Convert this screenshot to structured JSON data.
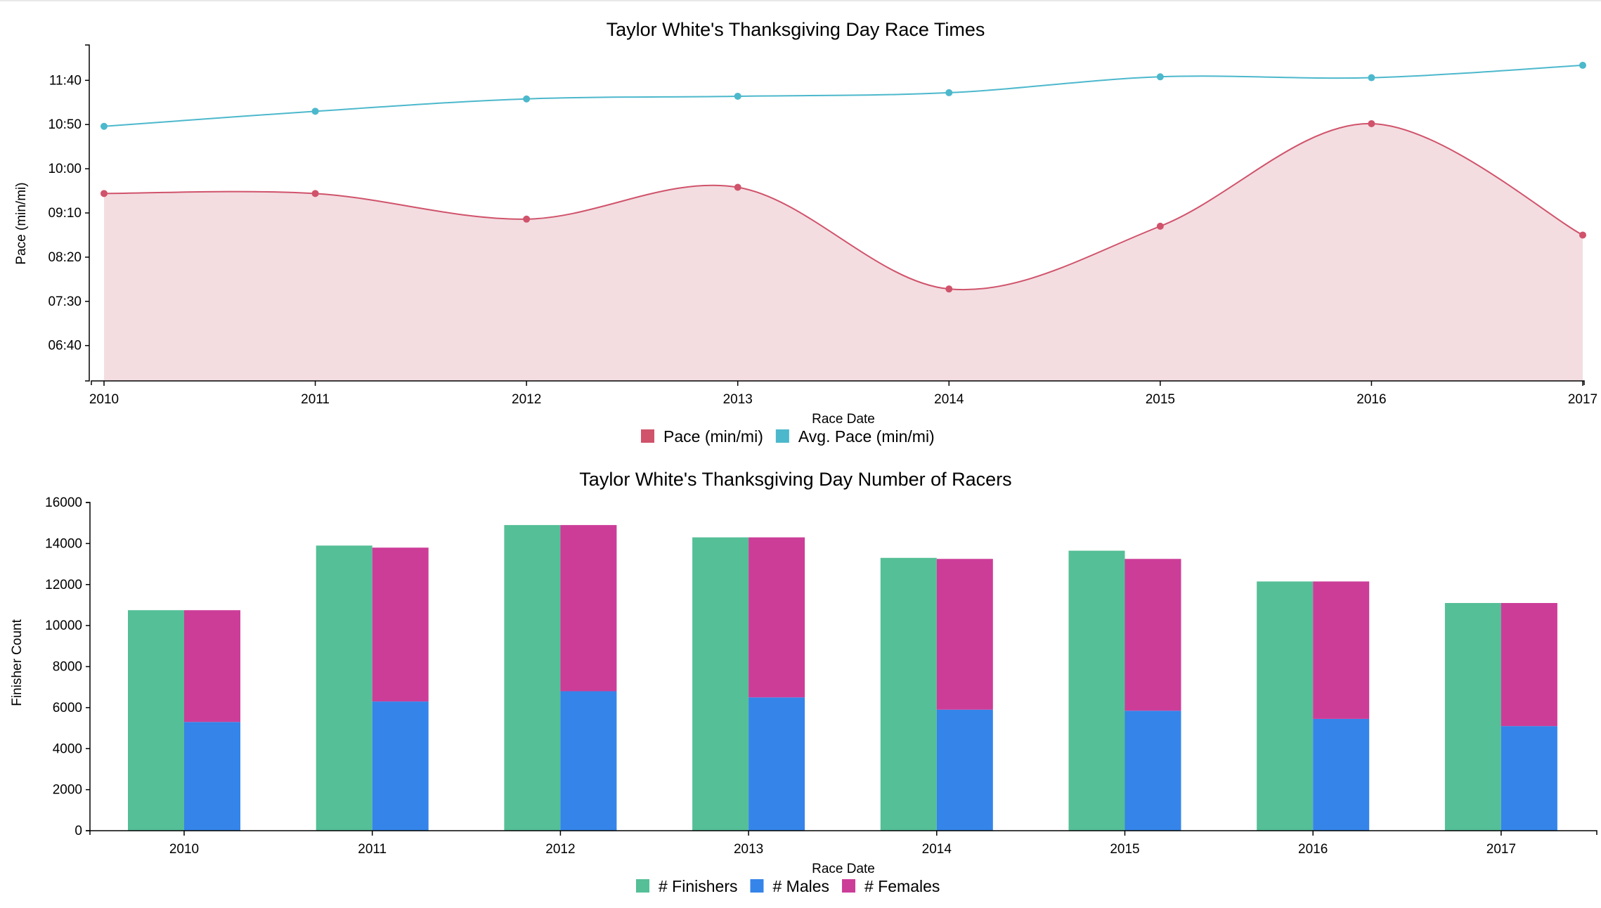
{
  "chart_data": [
    {
      "type": "area",
      "title": "Taylor White's Thanksgiving Day Race Times",
      "xlabel": "Race Date",
      "ylabel": "Pace (min/mi)",
      "y_unit": "minutes per mile",
      "y_ticks": [
        "06:40",
        "07:30",
        "08:20",
        "09:10",
        "10:00",
        "10:50",
        "11:40"
      ],
      "ylim_display": [
        "06:00",
        "12:20"
      ],
      "x": [
        "2010",
        "2011",
        "2012",
        "2013",
        "2014",
        "2015",
        "2016",
        "2017"
      ],
      "series": [
        {
          "name": "Pace (min/mi)",
          "color": "#d0536b",
          "fill": "#f3dde1",
          "style": "area",
          "values": [
            "09:32",
            "09:32",
            "09:03",
            "09:39",
            "07:44",
            "08:55",
            "10:51",
            "08:45"
          ]
        },
        {
          "name": "Avg. Pace (min/mi)",
          "color": "#4cb8cc",
          "style": "line",
          "values": [
            "10:48",
            "11:05",
            "11:19",
            "11:22",
            "11:26",
            "11:44",
            "11:43",
            "11:57"
          ]
        }
      ],
      "legend_position": "bottom"
    },
    {
      "type": "bar",
      "title": "Taylor White's Thanksgiving Day Number of Racers",
      "xlabel": "Race Date",
      "ylabel": "Finisher Count",
      "ylim": [
        0,
        16000
      ],
      "y_ticks": [
        "0",
        "2000",
        "4000",
        "6000",
        "8000",
        "10000",
        "12000",
        "14000",
        "16000"
      ],
      "categories": [
        "2010",
        "2011",
        "2012",
        "2013",
        "2014",
        "2015",
        "2016",
        "2017"
      ],
      "series": [
        {
          "name": "# Finishers",
          "color": "#55bf97",
          "stack": "a",
          "values": [
            10750,
            13900,
            14900,
            14300,
            13300,
            13650,
            12150,
            11100
          ]
        },
        {
          "name": "# Males",
          "color": "#3584e9",
          "stack": "b",
          "values": [
            5300,
            6300,
            6800,
            6500,
            5900,
            5850,
            5450,
            5100
          ]
        },
        {
          "name": "# Females",
          "color": "#cc3d98",
          "stack": "b",
          "values": [
            5450,
            7500,
            8100,
            7800,
            7350,
            7400,
            6700,
            6000
          ]
        }
      ],
      "legend_position": "bottom"
    }
  ]
}
